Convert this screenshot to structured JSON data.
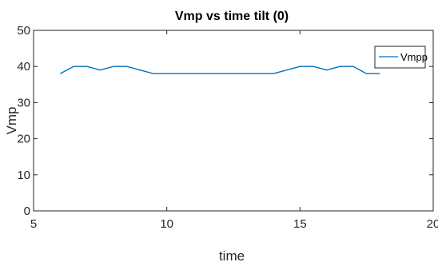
{
  "chart_data": {
    "type": "line",
    "title": "Vmp vs time tilt (0)",
    "xlabel": "time",
    "ylabel": "Vmp",
    "xlim": [
      5,
      20
    ],
    "ylim": [
      0,
      50
    ],
    "xticks": [
      5,
      10,
      15,
      20
    ],
    "yticks": [
      0,
      10,
      20,
      30,
      40,
      50
    ],
    "grid": false,
    "legend_position": "top-right",
    "series": [
      {
        "name": "Vmpp",
        "color": "#0072BD",
        "x": [
          6,
          6.5,
          7,
          7.5,
          8,
          8.5,
          9,
          9.5,
          10,
          10.5,
          11,
          11.5,
          12,
          12.5,
          13,
          13.5,
          14,
          14.5,
          15,
          15.5,
          16,
          16.5,
          17,
          17.5,
          18
        ],
        "y": [
          38,
          40,
          40,
          39,
          40,
          40,
          39,
          38,
          38,
          38,
          38,
          38,
          38,
          38,
          38,
          38,
          38,
          39,
          40,
          40,
          39,
          40,
          40,
          38,
          38
        ]
      }
    ]
  }
}
